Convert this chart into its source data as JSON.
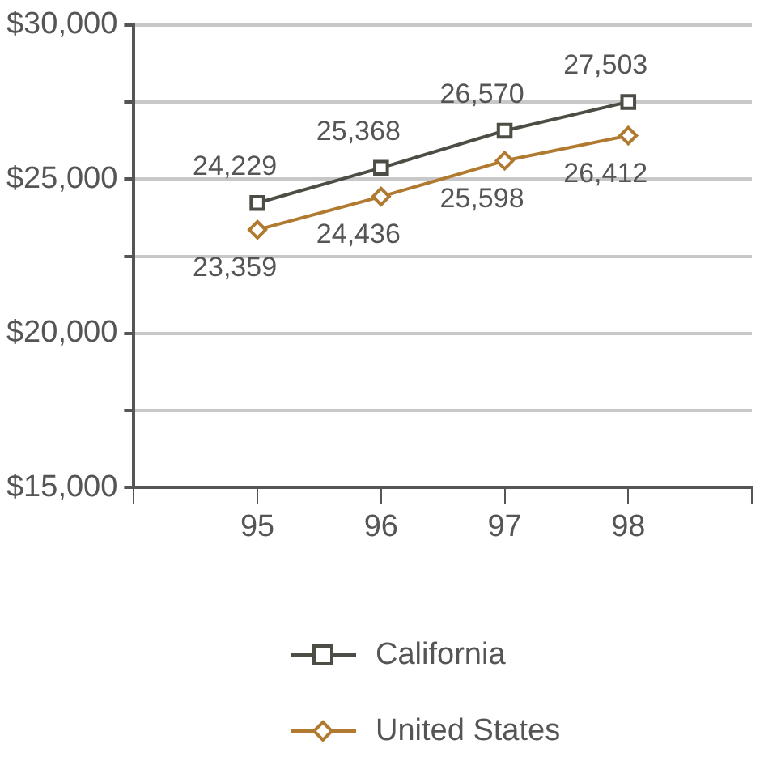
{
  "chart_data": {
    "type": "line",
    "x": [
      95,
      96,
      97,
      98
    ],
    "series": [
      {
        "name": "California",
        "color": "#4d4d45",
        "marker": "square",
        "values": [
          24229,
          25368,
          26570,
          27503
        ],
        "value_labels": [
          "24,229",
          "25,368",
          "26,570",
          "27,503"
        ]
      },
      {
        "name": "United States",
        "color": "#b07a30",
        "marker": "diamond",
        "values": [
          23359,
          24436,
          25598,
          26412
        ],
        "value_labels": [
          "23,359",
          "24,436",
          "25,598",
          "26,412"
        ]
      }
    ],
    "xlim": [
      94,
      99
    ],
    "xticks": [
      {
        "value": 94,
        "label": null
      },
      95,
      96,
      97,
      98,
      {
        "value": 99,
        "label": null
      }
    ],
    "ylim": [
      15000,
      30000
    ],
    "yticks": [
      {
        "value": 15000,
        "label": "$15,000"
      },
      {
        "value": 17500,
        "label": null
      },
      {
        "value": 20000,
        "label": "$20,000"
      },
      {
        "value": 22500,
        "label": null
      },
      {
        "value": 25000,
        "label": "$25,000"
      },
      {
        "value": 27500,
        "label": null
      },
      {
        "value": 30000,
        "label": "$30,000"
      }
    ],
    "grid": "y",
    "legend": "bottom",
    "line_style": "solid"
  }
}
